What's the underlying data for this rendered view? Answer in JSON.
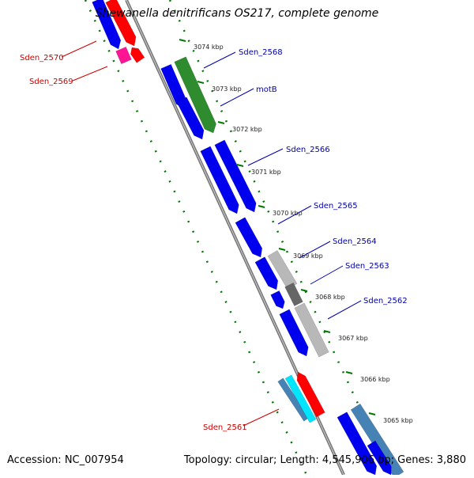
{
  "title": "Shewanella denitrificans OS217, complete genome",
  "footer": {
    "accession": "Accession: NC_007954",
    "summary": "Topology: circular; Length: 4,545,906 bp; Genes: 3,880"
  },
  "colors": {
    "cds_forward": "#0000ee",
    "cds_reverse": "#ff0000",
    "rna": "#2e8b2e",
    "grey": "#b8b8b8",
    "dark_grey": "#666666",
    "teal": "#4682b4",
    "cyan": "#00e5ff",
    "magenta": "#ff1493",
    "label_blue": "#0000aa",
    "label_red": "#cc0000",
    "tick_green": "#007700",
    "backbone": "#777777"
  },
  "kbp_ticks": [
    "3074 kbp",
    "3073 kbp",
    "3072 kbp",
    "3071 kbp",
    "3070 kbp",
    "3069 kbp",
    "3068 kbp",
    "3067 kbp",
    "3066 kbp",
    "3065 kbp"
  ],
  "gene_labels": [
    {
      "text": "Sden_2570",
      "color": "red"
    },
    {
      "text": "Sden_2569",
      "color": "red"
    },
    {
      "text": "Sden_2568",
      "color": "blue"
    },
    {
      "text": "motB",
      "color": "blue"
    },
    {
      "text": "Sden_2566",
      "color": "blue"
    },
    {
      "text": "Sden_2565",
      "color": "blue"
    },
    {
      "text": "Sden_2564",
      "color": "blue"
    },
    {
      "text": "Sden_2563",
      "color": "blue"
    },
    {
      "text": "Sden_2562",
      "color": "blue"
    },
    {
      "text": "Sden_2561",
      "color": "red"
    }
  ]
}
